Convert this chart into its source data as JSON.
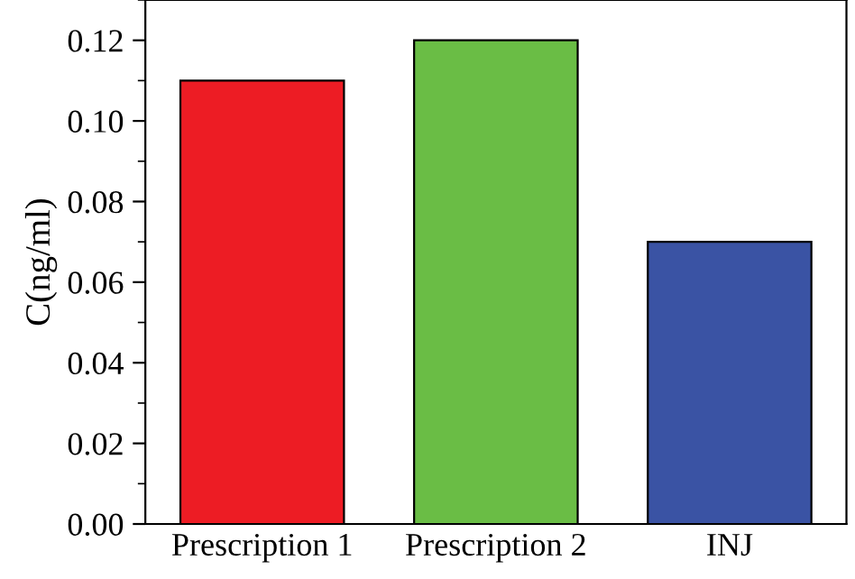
{
  "chart_data": {
    "type": "bar",
    "ylabel": "C(ng/ml)",
    "categories": [
      "Prescription 1",
      "Prescription 2",
      "INJ"
    ],
    "values": [
      0.11,
      0.12,
      0.07
    ],
    "colors": [
      "#ed1c24",
      "#6abd45",
      "#3a53a4"
    ],
    "ylim": [
      0,
      0.13
    ],
    "yticks": [
      {
        "value": 0,
        "label": "0.00"
      },
      {
        "value": 0.02,
        "label": "0.02"
      },
      {
        "value": 0.04,
        "label": "0.04"
      },
      {
        "value": 0.06,
        "label": "0.06"
      },
      {
        "value": 0.08,
        "label": "0.08"
      },
      {
        "value": 0.1,
        "label": "0.10"
      },
      {
        "value": 0.12,
        "label": "0.12"
      }
    ],
    "grid": false,
    "legend": false
  }
}
